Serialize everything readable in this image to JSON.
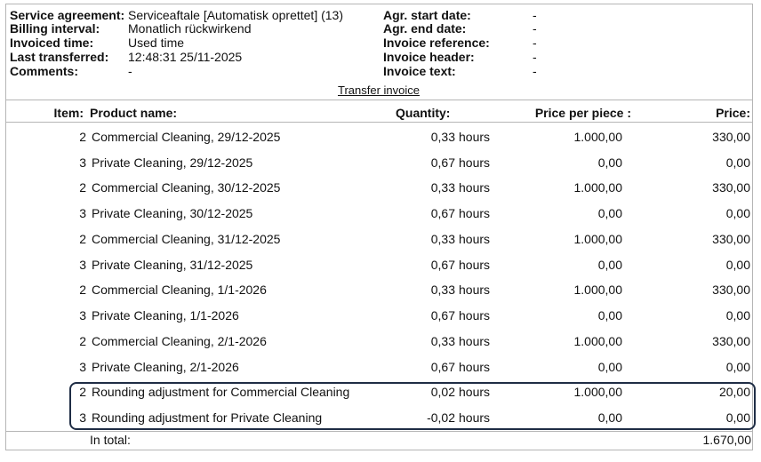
{
  "info": {
    "left": [
      {
        "label": "Service agreement:",
        "value": "Serviceaftale [Automatisk oprettet] (13)"
      },
      {
        "label": "Billing interval:",
        "value": "Monatlich rückwirkend"
      },
      {
        "label": "Invoiced time:",
        "value": "Used time"
      },
      {
        "label": "Last transferred:",
        "value": "12:48:31 25/11-2025"
      },
      {
        "label": "Comments:",
        "value": "-"
      }
    ],
    "right": [
      {
        "label": "Agr. start date:",
        "value": "-"
      },
      {
        "label": "Agr. end date:",
        "value": "-"
      },
      {
        "label": "Invoice reference:",
        "value": "-"
      },
      {
        "label": "Invoice header:",
        "value": "-"
      },
      {
        "label": "Invoice text:",
        "value": "-"
      }
    ]
  },
  "transfer_link": "Transfer invoice",
  "columns": {
    "item": "Item:",
    "product": "Product name:",
    "quantity": "Quantity:",
    "price_per_piece": "Price per piece :",
    "price": "Price:"
  },
  "rows": [
    {
      "item": "2",
      "product": "Commercial Cleaning, 29/12-2025",
      "qty": "0,33",
      "unit": "hours",
      "ppp": "1.000,00",
      "price": "330,00"
    },
    {
      "item": "3",
      "product": "Private Cleaning, 29/12-2025",
      "qty": "0,67",
      "unit": "hours",
      "ppp": "0,00",
      "price": "0,00"
    },
    {
      "item": "2",
      "product": "Commercial Cleaning, 30/12-2025",
      "qty": "0,33",
      "unit": "hours",
      "ppp": "1.000,00",
      "price": "330,00"
    },
    {
      "item": "3",
      "product": "Private Cleaning, 30/12-2025",
      "qty": "0,67",
      "unit": "hours",
      "ppp": "0,00",
      "price": "0,00"
    },
    {
      "item": "2",
      "product": "Commercial Cleaning, 31/12-2025",
      "qty": "0,33",
      "unit": "hours",
      "ppp": "1.000,00",
      "price": "330,00"
    },
    {
      "item": "3",
      "product": "Private Cleaning, 31/12-2025",
      "qty": "0,67",
      "unit": "hours",
      "ppp": "0,00",
      "price": "0,00"
    },
    {
      "item": "2",
      "product": "Commercial Cleaning, 1/1-2026",
      "qty": "0,33",
      "unit": "hours",
      "ppp": "1.000,00",
      "price": "330,00"
    },
    {
      "item": "3",
      "product": "Private Cleaning, 1/1-2026",
      "qty": "0,67",
      "unit": "hours",
      "ppp": "0,00",
      "price": "0,00"
    },
    {
      "item": "2",
      "product": "Commercial Cleaning, 2/1-2026",
      "qty": "0,33",
      "unit": "hours",
      "ppp": "1.000,00",
      "price": "330,00"
    },
    {
      "item": "3",
      "product": "Private Cleaning, 2/1-2026",
      "qty": "0,67",
      "unit": "hours",
      "ppp": "0,00",
      "price": "0,00"
    },
    {
      "item": "2",
      "product": "Rounding adjustment for Commercial Cleaning",
      "qty": "0,02",
      "unit": "hours",
      "ppp": "1.000,00",
      "price": "20,00"
    },
    {
      "item": "3",
      "product": "Rounding adjustment for Private Cleaning",
      "qty": "-0,02",
      "unit": "hours",
      "ppp": "0,00",
      "price": "0,00"
    }
  ],
  "total": {
    "label": "In total:",
    "value": "1.670,00"
  },
  "colors": {
    "border": "#b5b5b5",
    "highlight": "#1f2d45"
  }
}
